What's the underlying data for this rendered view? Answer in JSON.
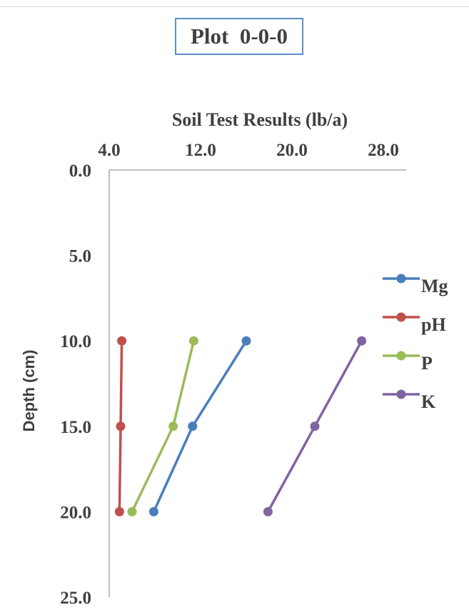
{
  "title": "Plot  0-0-0",
  "chart_data": {
    "type": "line",
    "title": "Plot  0-0-0",
    "xlabel": "Soil Test Results (lb/a)",
    "ylabel": "Depth (cm)",
    "x_axis_position": "top",
    "y_axis_reversed": true,
    "xlim": [
      4.0,
      30.0
    ],
    "ylim": [
      0.0,
      25.0
    ],
    "xticks": [
      "4.0",
      "12.0",
      "20.0",
      "28.0"
    ],
    "xtick_values": [
      4,
      12,
      20,
      28
    ],
    "yticks": [
      "0.0",
      "5.0",
      "10.0",
      "15.0",
      "20.0",
      "25.0"
    ],
    "ytick_values": [
      0,
      5,
      10,
      15,
      20,
      25
    ],
    "grid": false,
    "legend_position": "right",
    "series": [
      {
        "name": "Mg",
        "color": "#4a7ebb",
        "points": [
          [
            16.0,
            10.0
          ],
          [
            11.3,
            15.0
          ],
          [
            7.9,
            20.0
          ]
        ]
      },
      {
        "name": "pH",
        "color": "#c0504d",
        "points": [
          [
            5.1,
            10.0
          ],
          [
            5.0,
            15.0
          ],
          [
            4.9,
            20.0
          ]
        ]
      },
      {
        "name": "P",
        "color": "#9bbb59",
        "points": [
          [
            11.4,
            10.0
          ],
          [
            9.6,
            15.0
          ],
          [
            6.0,
            20.0
          ]
        ]
      },
      {
        "name": "K",
        "color": "#8064a2",
        "points": [
          [
            26.1,
            10.0
          ],
          [
            22.0,
            15.0
          ],
          [
            17.9,
            20.0
          ]
        ]
      }
    ]
  }
}
